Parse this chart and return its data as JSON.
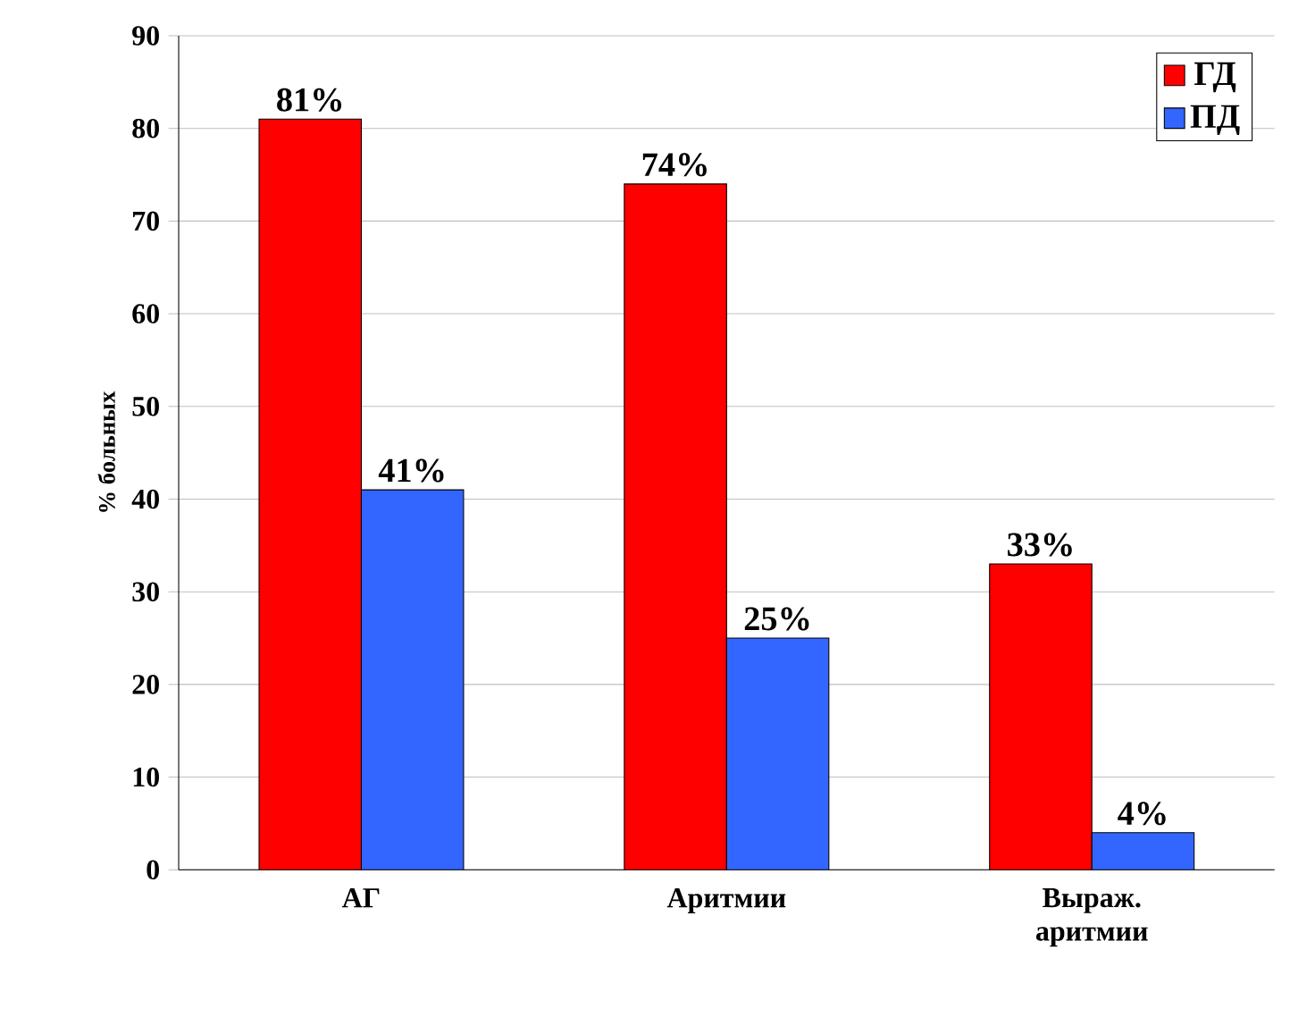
{
  "chart_data": {
    "type": "bar",
    "ylabel": "% больных",
    "categories": [
      "АГ",
      "Аритмии",
      "Выраж. аритмии"
    ],
    "series": [
      {
        "name": "ГД",
        "color": "#ff0000",
        "values": [
          81,
          74,
          33
        ],
        "value_labels": [
          "81%",
          "74%",
          "33%"
        ]
      },
      {
        "name": "ПД",
        "color": "#3366ff",
        "values": [
          41,
          25,
          4
        ],
        "value_labels": [
          "41%",
          "25%",
          "4%"
        ]
      }
    ],
    "ylim": [
      0,
      90
    ],
    "yticks": [
      0,
      10,
      20,
      30,
      40,
      50,
      60,
      70,
      80,
      90
    ],
    "grid": "y",
    "legend": "top right"
  }
}
